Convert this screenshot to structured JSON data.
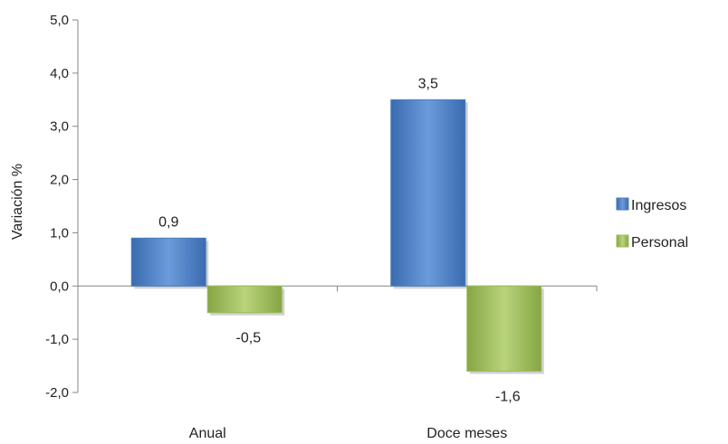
{
  "chart_data": {
    "type": "bar",
    "categories": [
      "Anual",
      "Doce meses"
    ],
    "series": [
      {
        "name": "Ingresos",
        "values": [
          0.9,
          3.5
        ],
        "labels": [
          "0,9",
          "3,5"
        ],
        "color": "#4A7EBB"
      },
      {
        "name": "Personal",
        "values": [
          -0.5,
          -1.6
        ],
        "labels": [
          "-0,5",
          "-1,6"
        ],
        "color": "#9BBB59"
      }
    ],
    "ylabel": "Variación %",
    "xlabel": "",
    "ylim": [
      -2.0,
      5.0
    ],
    "yticks": [
      5.0,
      4.0,
      3.0,
      2.0,
      1.0,
      0.0,
      -1.0,
      -2.0
    ],
    "ytick_labels": [
      "5,0",
      "4,0",
      "3,0",
      "2,0",
      "1,0",
      "0,0",
      "-1,0",
      "-2,0"
    ],
    "grid": false,
    "legend_position": "right"
  }
}
